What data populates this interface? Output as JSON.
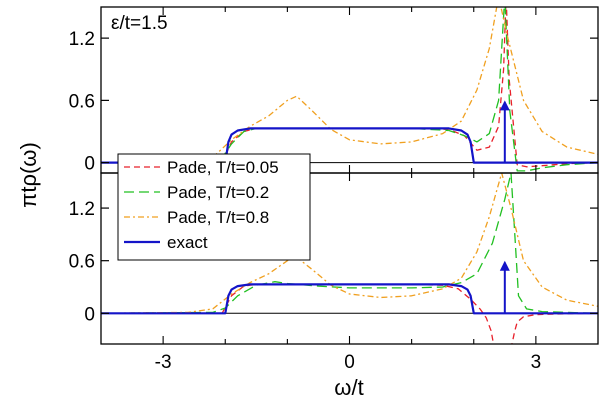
{
  "chart_data": [
    {
      "type": "line",
      "panel": "top",
      "annotation": "ε/t=1.5",
      "xlim": [
        -4.0,
        4.0
      ],
      "ylim": [
        -0.1,
        1.5
      ],
      "yticks": [
        "0",
        "0.6",
        "1.2"
      ],
      "yticks_values": [
        0,
        0.6,
        1.2
      ],
      "series": [
        {
          "name": "Pade, T/t=0.05",
          "color": "#e8212b",
          "dash": "6,4",
          "peak": 2.52,
          "peak_height": 1.6,
          "dip": null,
          "x": [
            -4,
            -2.05,
            -1.9,
            -1.7,
            -1.5,
            -1,
            0,
            1,
            1.6,
            1.85,
            2.05,
            2.25,
            2.4,
            2.48,
            2.52,
            2.57,
            2.7,
            2.85,
            3.1,
            3.5,
            4
          ],
          "y": [
            0,
            0,
            0.2,
            0.3,
            0.33,
            0.33,
            0.33,
            0.33,
            0.32,
            0.26,
            0.12,
            0.15,
            0.35,
            0.9,
            1.6,
            0.8,
            -0.02,
            -0.04,
            -0.03,
            -0.01,
            0
          ]
        },
        {
          "name": "Pade, T/t=0.2",
          "color": "#22c022",
          "dash": "10,5",
          "peak": 2.5,
          "peak_height": 1.6,
          "dip": null,
          "x": [
            -4,
            -2.1,
            -1.9,
            -1.7,
            -1.5,
            -1,
            0,
            1,
            1.6,
            1.85,
            2.05,
            2.25,
            2.4,
            2.5,
            2.58,
            2.7,
            2.85,
            3.1,
            3.5,
            4
          ],
          "y": [
            0,
            0,
            0.18,
            0.3,
            0.33,
            0.33,
            0.33,
            0.33,
            0.31,
            0.26,
            0.2,
            0.28,
            0.6,
            1.6,
            0.5,
            -0.08,
            -0.08,
            -0.05,
            -0.02,
            0
          ]
        },
        {
          "name": "Pade, T/t=0.8",
          "color": "#f0a020",
          "dash": "6,3,2,3",
          "peak": 2.4,
          "peak_height": 1.6,
          "dip": null,
          "x": [
            -4,
            -2.6,
            -2.2,
            -1.9,
            -1.6,
            -1.3,
            -1,
            -0.85,
            -0.6,
            -0.3,
            0,
            0.5,
            1,
            1.5,
            1.8,
            2.05,
            2.25,
            2.4,
            2.55,
            2.8,
            3.1,
            3.5,
            4
          ],
          "y": [
            0,
            0.01,
            0.05,
            0.22,
            0.35,
            0.45,
            0.6,
            0.64,
            0.5,
            0.32,
            0.22,
            0.18,
            0.2,
            0.28,
            0.4,
            0.7,
            1.1,
            1.6,
            1.2,
            0.6,
            0.3,
            0.15,
            0.08
          ]
        },
        {
          "name": "exact",
          "color": "#1414c8",
          "dash": "",
          "x": [
            -4,
            -2,
            -1.95,
            -1.9,
            -1.8,
            -1.6,
            -1.4,
            -1,
            0,
            1,
            1.4,
            1.6,
            1.8,
            1.9,
            1.95,
            2,
            4
          ],
          "y": [
            0,
            0,
            0.2,
            0.27,
            0.31,
            0.33,
            0.33,
            0.33,
            0.33,
            0.33,
            0.33,
            0.33,
            0.31,
            0.27,
            0.2,
            0,
            0
          ],
          "delta_x": 2.5,
          "delta_top": 0.6
        }
      ]
    },
    {
      "type": "line",
      "panel": "bottom",
      "xlabel": "ω/t",
      "ylabel": "πtρ(ω)",
      "xlim": [
        -4.0,
        4.0
      ],
      "ylim": [
        -0.35,
        1.6
      ],
      "xticks": [
        "-3",
        "0",
        "3"
      ],
      "xticks_values": [
        -3,
        0,
        3
      ],
      "yticks": [
        "0",
        "0.6",
        "1.2"
      ],
      "yticks_values": [
        0,
        0.6,
        1.2
      ],
      "series": [
        {
          "name": "Pade, T/t=0.05",
          "color": "#e8212b",
          "dash": "6,4",
          "x": [
            -4,
            -2.05,
            -1.9,
            -1.7,
            -1.5,
            -1,
            0,
            1,
            1.5,
            1.75,
            1.95,
            2.1,
            2.2,
            2.28,
            2.33,
            2.6,
            2.66,
            2.7,
            2.8,
            3,
            3.5,
            4
          ],
          "y": [
            0,
            0,
            0.2,
            0.31,
            0.33,
            0.33,
            0.33,
            0.33,
            0.32,
            0.28,
            0.16,
            0.05,
            -0.05,
            -0.2,
            -0.4,
            -0.4,
            -0.2,
            -0.1,
            -0.04,
            -0.015,
            -0.005,
            0
          ]
        },
        {
          "name": "Pade, T/t=0.2",
          "color": "#22c022",
          "dash": "10,5",
          "x": [
            -4,
            -2.2,
            -2,
            -1.8,
            -1.5,
            -1.2,
            -1,
            -0.5,
            0,
            0.5,
            1,
            1.5,
            1.8,
            2.05,
            2.3,
            2.5,
            2.6,
            2.66,
            2.72,
            2.85,
            3.1,
            3.5,
            4
          ],
          "y": [
            0,
            0.01,
            0.06,
            0.2,
            0.32,
            0.36,
            0.34,
            0.31,
            0.29,
            0.29,
            0.29,
            0.3,
            0.35,
            0.45,
            0.8,
            1.3,
            1.6,
            0.9,
            0.2,
            0.05,
            0.02,
            0.01,
            0
          ]
        },
        {
          "name": "Pade, T/t=0.8",
          "color": "#f0a020",
          "dash": "6,3,2,3",
          "x": [
            -4,
            -2.6,
            -2.2,
            -1.9,
            -1.6,
            -1.3,
            -1,
            -0.85,
            -0.6,
            -0.3,
            0,
            0.5,
            1,
            1.5,
            1.8,
            2.05,
            2.25,
            2.45,
            2.6,
            2.8,
            3.1,
            3.5,
            4
          ],
          "y": [
            0,
            0.01,
            0.05,
            0.22,
            0.35,
            0.45,
            0.6,
            0.64,
            0.5,
            0.32,
            0.22,
            0.18,
            0.2,
            0.28,
            0.4,
            0.7,
            1.1,
            1.6,
            1.2,
            0.6,
            0.3,
            0.15,
            0.08
          ]
        },
        {
          "name": "exact",
          "color": "#1414c8",
          "dash": "",
          "x": [
            -4,
            -2,
            -1.95,
            -1.9,
            -1.8,
            -1.6,
            -1.4,
            -1,
            0,
            1,
            1.4,
            1.6,
            1.8,
            1.9,
            1.95,
            2,
            4
          ],
          "y": [
            0,
            0,
            0.2,
            0.27,
            0.31,
            0.33,
            0.33,
            0.33,
            0.33,
            0.33,
            0.33,
            0.33,
            0.31,
            0.27,
            0.2,
            0,
            0
          ],
          "delta_x": 2.5,
          "delta_top": 0.6
        }
      ],
      "legend": {
        "placement": "top-left",
        "entries": [
          "Pade, T/t=0.05",
          "Pade, T/t=0.2",
          "Pade, T/t=0.8",
          "exact"
        ]
      }
    }
  ]
}
